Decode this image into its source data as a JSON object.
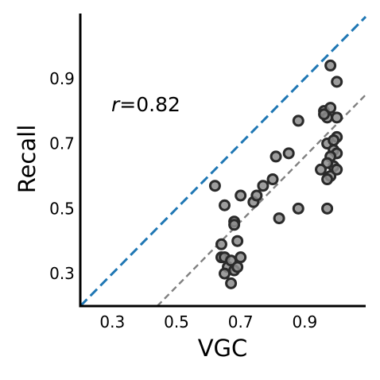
{
  "chart_data": {
    "type": "scatter",
    "xlabel": "VGC",
    "ylabel": "Recall",
    "xlim": [
      0.2,
      1.09
    ],
    "ylim": [
      0.2,
      1.1
    ],
    "x_ticks": [
      0.3,
      0.5,
      0.7,
      0.9
    ],
    "x_tick_labels": [
      "0.3",
      "0.5",
      "0.7",
      "0.9"
    ],
    "y_ticks": [
      0.3,
      0.5,
      0.7,
      0.9
    ],
    "y_tick_labels": [
      "0.3",
      "0.5",
      "0.7",
      "0.9"
    ],
    "grid": false,
    "annotation": {
      "symbol": "r",
      "text": "=0.82"
    },
    "reference_lines": [
      {
        "kind": "identity",
        "slope": 1,
        "intercept": 0,
        "color": "#1f77b4",
        "style": "dashed"
      },
      {
        "kind": "fit",
        "slope": 1.0,
        "intercept": -0.24,
        "color": "#808080",
        "style": "dashed"
      }
    ],
    "marker": {
      "fill": "#8c8c8c",
      "edge": "#2a2a2a"
    },
    "points": [
      [
        0.62,
        0.57
      ],
      [
        0.65,
        0.51
      ],
      [
        0.68,
        0.46
      ],
      [
        0.68,
        0.45
      ],
      [
        0.7,
        0.54
      ],
      [
        0.74,
        0.52
      ],
      [
        0.75,
        0.54
      ],
      [
        0.77,
        0.57
      ],
      [
        0.8,
        0.59
      ],
      [
        0.81,
        0.66
      ],
      [
        0.82,
        0.47
      ],
      [
        0.85,
        0.67
      ],
      [
        0.88,
        0.77
      ],
      [
        0.88,
        0.5
      ],
      [
        0.64,
        0.39
      ],
      [
        0.64,
        0.35
      ],
      [
        0.65,
        0.35
      ],
      [
        0.66,
        0.32
      ],
      [
        0.65,
        0.3
      ],
      [
        0.67,
        0.34
      ],
      [
        0.68,
        0.31
      ],
      [
        0.67,
        0.27
      ],
      [
        0.69,
        0.4
      ],
      [
        0.7,
        0.35
      ],
      [
        0.69,
        0.32
      ],
      [
        0.98,
        0.94
      ],
      [
        1.0,
        0.89
      ],
      [
        0.96,
        0.8
      ],
      [
        0.97,
        0.78
      ],
      [
        0.98,
        0.81
      ],
      [
        1.0,
        0.78
      ],
      [
        0.96,
        0.79
      ],
      [
        1.0,
        0.72
      ],
      [
        0.97,
        0.7
      ],
      [
        0.99,
        0.68
      ],
      [
        1.0,
        0.67
      ],
      [
        0.98,
        0.66
      ],
      [
        0.99,
        0.63
      ],
      [
        0.97,
        0.64
      ],
      [
        0.95,
        0.62
      ],
      [
        0.98,
        0.6
      ],
      [
        0.97,
        0.59
      ],
      [
        0.97,
        0.5
      ],
      [
        1.0,
        0.62
      ],
      [
        0.99,
        0.71
      ]
    ]
  }
}
